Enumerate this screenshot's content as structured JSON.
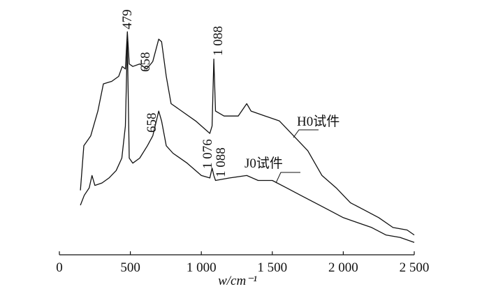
{
  "chart_data": {
    "type": "line",
    "x_label": "w/cm⁻¹",
    "xlim": [
      0,
      2500
    ],
    "xticks": [
      0,
      500,
      {
        "value": 1000,
        "label": "1 000"
      },
      {
        "value": 1500,
        "label": "1 500"
      },
      {
        "value": 2000,
        "label": "2 000"
      },
      {
        "value": 2500,
        "label": "2 500"
      }
    ],
    "ylim": [
      0,
      100
    ],
    "series": [
      {
        "name": "H0试件",
        "color": "#111111",
        "x": [
          148,
          172,
          221,
          271,
          310,
          369,
          418,
          443,
          465,
          479,
          492,
          517,
          566,
          615,
          658,
          700,
          720,
          753,
          787,
          861,
          960,
          1060,
          1076,
          1088,
          1100,
          1160,
          1260,
          1320,
          1350,
          1450,
          1550,
          1650,
          1750,
          1850,
          1950,
          2050,
          2150,
          2250,
          2350,
          2450,
          2500
        ],
        "values": [
          26,
          44,
          48,
          58,
          69,
          70,
          72,
          76,
          75,
          90,
          77,
          76,
          77,
          75,
          78,
          87,
          86,
          72,
          61,
          58,
          54,
          49,
          52,
          79,
          58,
          56,
          56,
          61,
          58,
          56,
          54,
          48,
          42,
          32,
          27,
          21,
          18,
          15,
          11,
          10,
          8
        ]
      },
      {
        "name": "J0试件",
        "color": "#111111",
        "x": [
          148,
          175,
          210,
          230,
          250,
          300,
          350,
          400,
          440,
          465,
          479,
          492,
          517,
          566,
          620,
          658,
          700,
          720,
          753,
          800,
          900,
          1000,
          1060,
          1076,
          1088,
          1100,
          1200,
          1320,
          1400,
          1500,
          1600,
          1700,
          1800,
          1900,
          2000,
          2100,
          2200,
          2300,
          2400,
          2500
        ],
        "values": [
          20,
          24,
          27,
          32,
          28,
          29,
          31,
          34,
          39,
          52,
          86,
          39,
          37,
          39,
          44,
          48,
          58,
          54,
          44,
          41,
          37,
          32,
          31,
          35,
          32,
          30,
          31,
          32,
          30,
          30,
          27,
          24,
          21,
          18,
          15,
          13,
          11,
          8,
          7,
          5
        ]
      }
    ],
    "annotations": [
      "479",
      "658",
      "1 088",
      "658",
      "1 076",
      "1 088"
    ]
  }
}
